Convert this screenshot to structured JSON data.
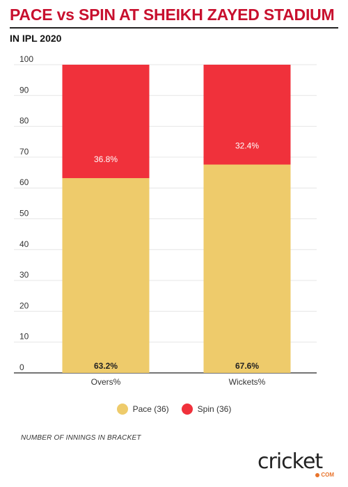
{
  "title": "PACE vs SPIN AT SHEIKH ZAYED STADIUM",
  "subtitle": "IN IPL 2020",
  "footnote": "NUMBER OF INNINGS IN BRACKET",
  "logo": {
    "text": "cricket",
    "sub": "COM"
  },
  "colors": {
    "pace": "#eecb6b",
    "spin": "#f0313b",
    "title": "#c8102e"
  },
  "chart_data": {
    "type": "bar",
    "stacked": true,
    "categories": [
      "Overs%",
      "Wickets%"
    ],
    "series": [
      {
        "name": "Pace (36)",
        "values": [
          63.2,
          67.6
        ],
        "labels": [
          "63.2%",
          "67.6%"
        ]
      },
      {
        "name": "Spin (36)",
        "values": [
          36.8,
          32.4
        ],
        "labels": [
          "36.8%",
          "32.4%"
        ]
      }
    ],
    "ylim": [
      0,
      100
    ],
    "yticks": [
      "0",
      "10",
      "20",
      "30",
      "40",
      "50",
      "60",
      "70",
      "80",
      "90",
      "100"
    ],
    "grid": true,
    "legend": "bottom"
  }
}
